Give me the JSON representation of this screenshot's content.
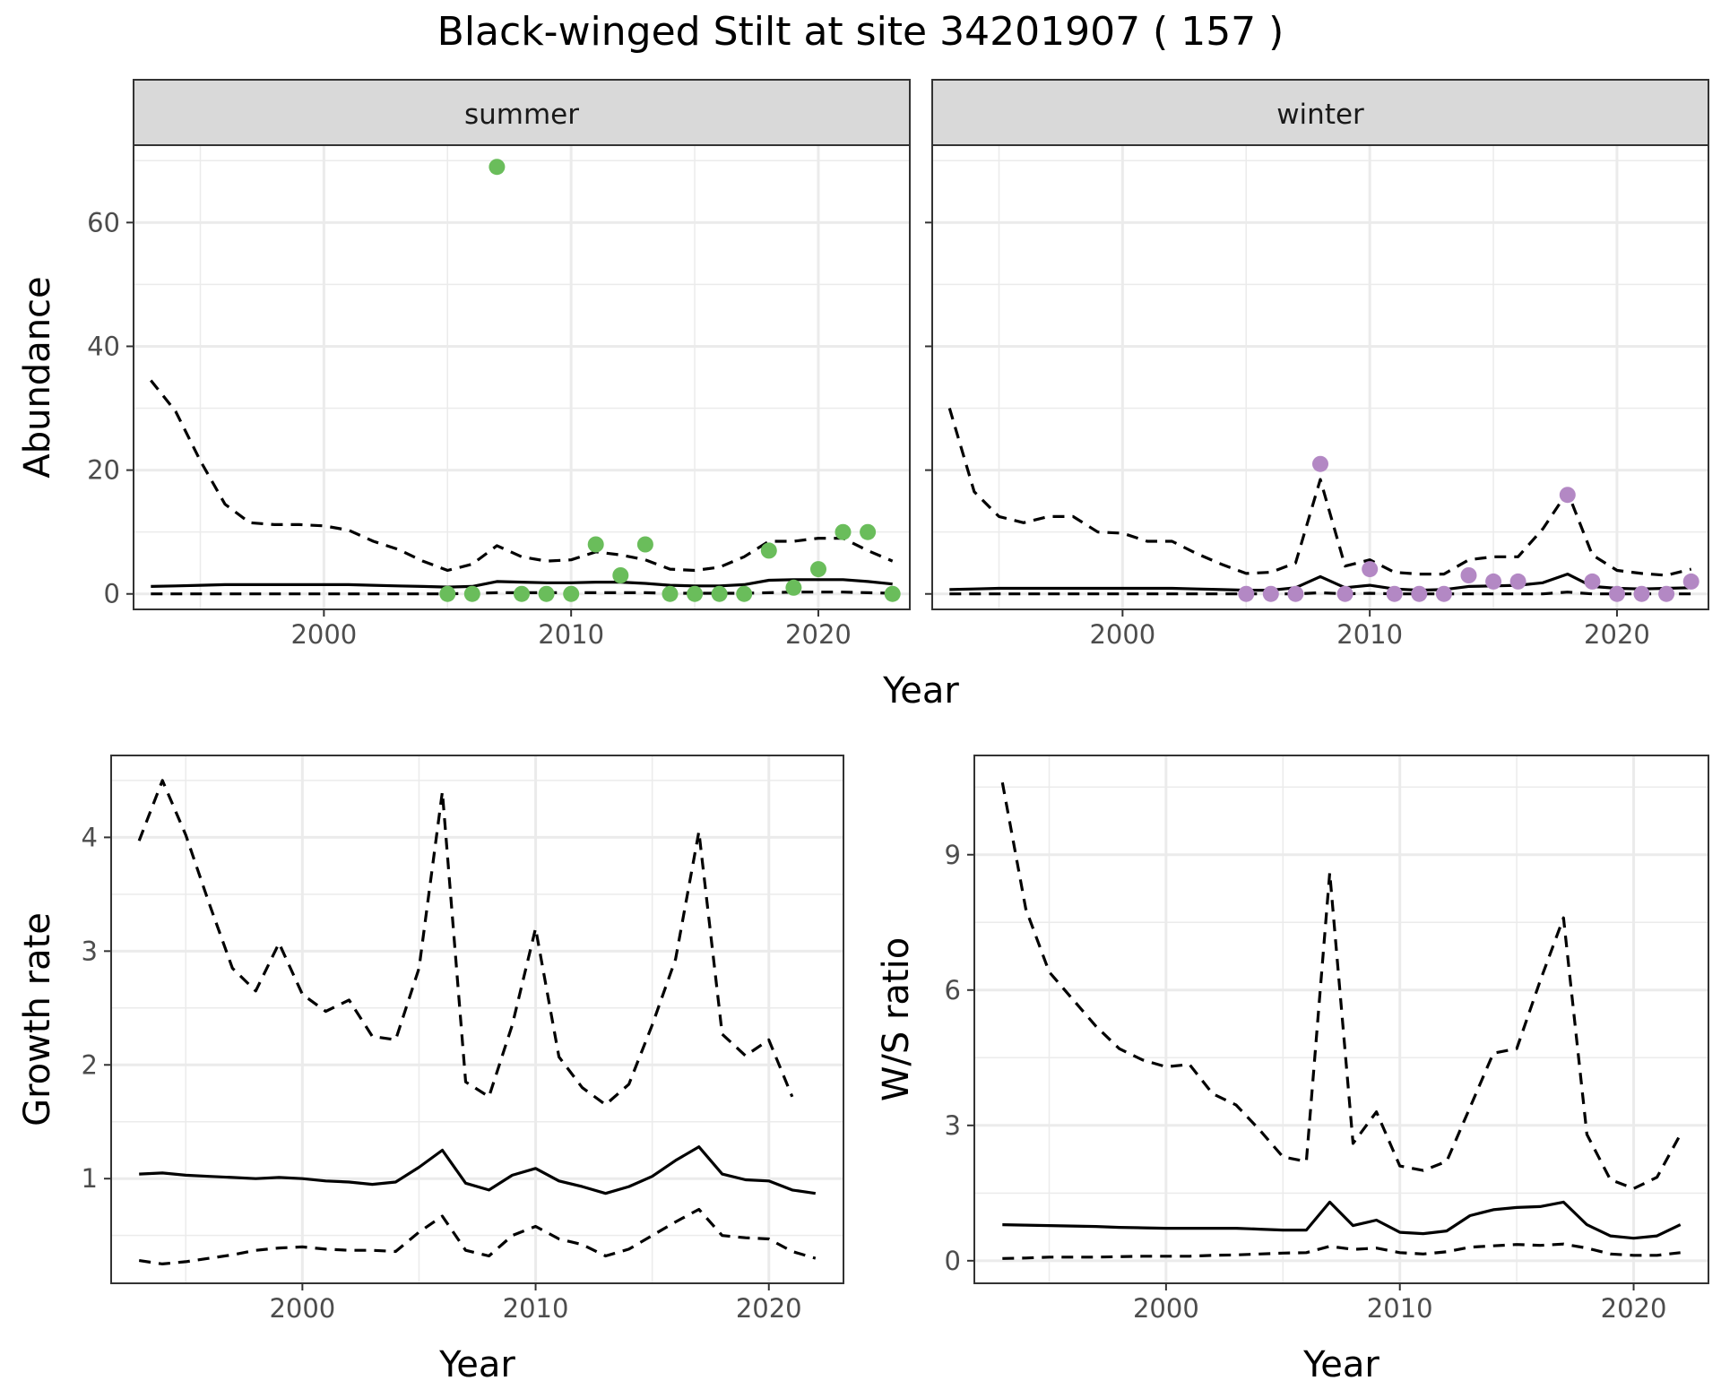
{
  "figure": {
    "title": "Black-winged Stilt at site 34201907 ( 157 )"
  },
  "chart_data": [
    {
      "type": "line",
      "title": "",
      "xlabel": "Year",
      "ylabel": "Abundance",
      "xlim": [
        1992.3,
        2023.7
      ],
      "ylim": [
        -2.5,
        72.5
      ],
      "xticks": [
        2000,
        2010,
        2020
      ],
      "yticks": [
        0,
        20,
        40,
        60
      ],
      "facets": [
        {
          "name": "summer",
          "point_color": "#6abd5b",
          "x": [
            1993,
            1994,
            1995,
            1996,
            1997,
            1998,
            1999,
            2000,
            2001,
            2002,
            2003,
            2004,
            2005,
            2006,
            2007,
            2008,
            2009,
            2010,
            2011,
            2012,
            2013,
            2014,
            2015,
            2016,
            2017,
            2018,
            2019,
            2020,
            2021,
            2022,
            2023
          ],
          "series": [
            {
              "role": "upper",
              "values": [
                34.5,
                29.5,
                21.5,
                14.5,
                11.5,
                11.2,
                11.2,
                11,
                10.3,
                8.5,
                7.2,
                5.3,
                3.8,
                4.8,
                7.8,
                6,
                5.3,
                5.5,
                6.8,
                6.3,
                5.5,
                4,
                3.8,
                4.3,
                6,
                8.5,
                8.5,
                9,
                9,
                7,
                5.3
              ]
            },
            {
              "role": "mean",
              "values": [
                1.2,
                1.3,
                1.4,
                1.5,
                1.5,
                1.5,
                1.5,
                1.5,
                1.5,
                1.4,
                1.3,
                1.2,
                1.1,
                1.2,
                2,
                1.9,
                1.8,
                1.8,
                1.9,
                1.9,
                1.7,
                1.4,
                1.3,
                1.3,
                1.5,
                2.2,
                2.3,
                2.3,
                2.3,
                2,
                1.6
              ]
            },
            {
              "role": "lower",
              "values": [
                0,
                0,
                0,
                0,
                0,
                0,
                0,
                0,
                0,
                0,
                0,
                0,
                0,
                0.1,
                0.2,
                0.2,
                0.2,
                0.2,
                0.2,
                0.2,
                0.2,
                0.1,
                0.1,
                0.1,
                0.1,
                0.2,
                0.3,
                0.3,
                0.3,
                0.2,
                0.1
              ]
            }
          ],
          "points": [
            [
              2005,
              0
            ],
            [
              2006,
              0
            ],
            [
              2007,
              69
            ],
            [
              2008,
              0
            ],
            [
              2009,
              0
            ],
            [
              2010,
              0
            ],
            [
              2011,
              8
            ],
            [
              2012,
              3
            ],
            [
              2013,
              8
            ],
            [
              2014,
              0
            ],
            [
              2015,
              0
            ],
            [
              2016,
              0
            ],
            [
              2017,
              0
            ],
            [
              2018,
              7
            ],
            [
              2019,
              1
            ],
            [
              2020,
              4
            ],
            [
              2021,
              10
            ],
            [
              2022,
              10
            ],
            [
              2023,
              0
            ]
          ]
        },
        {
          "name": "winter",
          "point_color": "#b388c4",
          "x": [
            1993,
            1994,
            1995,
            1996,
            1997,
            1998,
            1999,
            2000,
            2001,
            2002,
            2003,
            2004,
            2005,
            2006,
            2007,
            2008,
            2009,
            2010,
            2011,
            2012,
            2013,
            2014,
            2015,
            2016,
            2017,
            2018,
            2019,
            2020,
            2021,
            2022,
            2023
          ],
          "series": [
            {
              "role": "upper",
              "values": [
                30,
                16.5,
                12.5,
                11.5,
                12.5,
                12.5,
                10,
                9.8,
                8.5,
                8.5,
                6.5,
                4.8,
                3.3,
                3.5,
                5,
                18.5,
                4.5,
                5.5,
                3.5,
                3.2,
                3.2,
                5.5,
                6,
                6,
                10.5,
                16.5,
                6.3,
                3.8,
                3.3,
                3,
                4
              ]
            },
            {
              "role": "mean",
              "values": [
                0.7,
                0.8,
                0.9,
                0.9,
                0.9,
                0.9,
                0.9,
                0.9,
                0.9,
                0.9,
                0.8,
                0.7,
                0.6,
                0.6,
                1,
                2.8,
                1,
                1.4,
                0.8,
                0.6,
                0.7,
                1.2,
                1.3,
                1.4,
                1.8,
                3.2,
                1.2,
                0.9,
                0.8,
                0.9,
                1
              ]
            },
            {
              "role": "lower",
              "values": [
                0,
                0,
                0,
                0,
                0,
                0,
                0,
                0,
                0,
                0,
                0,
                0,
                0,
                0,
                0,
                0.2,
                0,
                0.1,
                0,
                0,
                0,
                0,
                0,
                0,
                0,
                0.3,
                0,
                0,
                0,
                0,
                0
              ]
            }
          ],
          "points": [
            [
              2005,
              0
            ],
            [
              2006,
              0
            ],
            [
              2007,
              0
            ],
            [
              2008,
              21
            ],
            [
              2009,
              0
            ],
            [
              2010,
              4
            ],
            [
              2011,
              0
            ],
            [
              2012,
              0
            ],
            [
              2013,
              0
            ],
            [
              2014,
              3
            ],
            [
              2015,
              2
            ],
            [
              2016,
              2
            ],
            [
              2018,
              16
            ],
            [
              2019,
              2
            ],
            [
              2020,
              0
            ],
            [
              2021,
              0
            ],
            [
              2022,
              0
            ],
            [
              2023,
              2
            ]
          ]
        }
      ]
    },
    {
      "type": "line",
      "title": "",
      "xlabel": "Year",
      "ylabel": "Growth rate",
      "xlim": [
        1991.8,
        2023.2
      ],
      "ylim": [
        0.08,
        4.72
      ],
      "xticks": [
        2000,
        2010,
        2020
      ],
      "yticks": [
        1,
        2,
        3,
        4
      ],
      "x": [
        1993,
        1994,
        1995,
        1996,
        1997,
        1998,
        1999,
        2000,
        2001,
        2002,
        2003,
        2004,
        2005,
        2006,
        2007,
        2008,
        2009,
        2010,
        2011,
        2012,
        2013,
        2014,
        2015,
        2016,
        2017,
        2018,
        2019,
        2020,
        2021,
        2022
      ],
      "series": [
        {
          "role": "upper",
          "values": [
            3.97,
            4.5,
            4.02,
            3.42,
            2.85,
            2.65,
            3.07,
            2.62,
            2.47,
            2.57,
            2.25,
            2.22,
            2.85,
            4.4,
            1.85,
            1.72,
            2.35,
            3.2,
            2.07,
            1.8,
            1.65,
            1.83,
            2.35,
            2.93,
            4.05,
            2.27,
            2.08,
            2.22,
            1.72,
            null
          ]
        },
        {
          "role": "mean",
          "values": [
            1.04,
            1.05,
            1.03,
            1.02,
            1.01,
            1.0,
            1.01,
            1.0,
            0.98,
            0.97,
            0.95,
            0.97,
            1.1,
            1.25,
            0.96,
            0.9,
            1.03,
            1.09,
            0.98,
            0.93,
            0.87,
            0.93,
            1.02,
            1.16,
            1.28,
            1.04,
            0.99,
            0.98,
            0.9,
            0.87
          ]
        },
        {
          "role": "lower",
          "values": [
            0.28,
            0.25,
            0.27,
            0.3,
            0.33,
            0.37,
            0.39,
            0.4,
            0.38,
            0.37,
            0.37,
            0.36,
            0.53,
            0.67,
            0.37,
            0.32,
            0.5,
            0.58,
            0.47,
            0.42,
            0.32,
            0.38,
            0.5,
            0.62,
            0.73,
            0.5,
            0.48,
            0.47,
            0.36,
            0.3
          ]
        }
      ]
    },
    {
      "type": "line",
      "title": "",
      "xlabel": "Year",
      "ylabel": "W/S ratio",
      "xlim": [
        1991.8,
        2023.2
      ],
      "ylim": [
        -0.5,
        11.2
      ],
      "xticks": [
        2000,
        2010,
        2020
      ],
      "yticks": [
        0,
        3,
        6,
        9
      ],
      "x": [
        1993,
        1994,
        1995,
        1996,
        1997,
        1998,
        1999,
        2000,
        2001,
        2002,
        2003,
        2004,
        2005,
        2006,
        2007,
        2008,
        2009,
        2010,
        2011,
        2012,
        2013,
        2014,
        2015,
        2016,
        2017,
        2018,
        2019,
        2020,
        2021,
        2022
      ],
      "series": [
        {
          "role": "upper",
          "values": [
            10.6,
            7.8,
            6.4,
            5.8,
            5.2,
            4.7,
            4.45,
            4.3,
            4.35,
            3.7,
            3.45,
            2.9,
            2.3,
            2.2,
            8.6,
            2.6,
            3.3,
            2.1,
            2.0,
            2.2,
            3.4,
            4.6,
            4.7,
            6.2,
            7.6,
            2.8,
            1.8,
            1.6,
            1.85,
            2.8
          ]
        },
        {
          "role": "mean",
          "values": [
            0.8,
            0.79,
            0.78,
            0.77,
            0.76,
            0.74,
            0.73,
            0.72,
            0.72,
            0.72,
            0.72,
            0.7,
            0.68,
            0.68,
            1.3,
            0.78,
            0.9,
            0.63,
            0.6,
            0.66,
            1.0,
            1.13,
            1.18,
            1.2,
            1.3,
            0.8,
            0.55,
            0.5,
            0.55,
            0.8
          ]
        },
        {
          "role": "lower",
          "values": [
            0.05,
            0.06,
            0.08,
            0.08,
            0.08,
            0.09,
            0.1,
            0.1,
            0.1,
            0.12,
            0.13,
            0.15,
            0.17,
            0.18,
            0.32,
            0.25,
            0.28,
            0.18,
            0.15,
            0.2,
            0.3,
            0.33,
            0.36,
            0.34,
            0.37,
            0.28,
            0.15,
            0.12,
            0.12,
            0.18
          ]
        }
      ]
    }
  ]
}
